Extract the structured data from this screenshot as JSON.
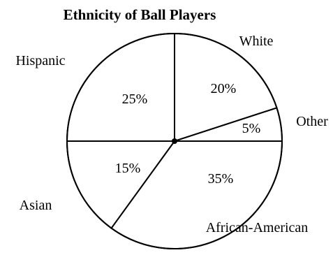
{
  "chart_data": {
    "type": "pie",
    "title": "Ethnicity of Ball Players",
    "slices": [
      {
        "label": "White",
        "value": 20,
        "value_label": "20%"
      },
      {
        "label": "Other",
        "value": 5,
        "value_label": "5%"
      },
      {
        "label": "African-American",
        "value": 35,
        "value_label": "35%"
      },
      {
        "label": "Asian",
        "value": 15,
        "value_label": "15%"
      },
      {
        "label": "Hispanic",
        "value": 25,
        "value_label": "25%"
      }
    ],
    "colors": {
      "fill": "#ffffff",
      "stroke": "#000000"
    },
    "legend": "none"
  }
}
